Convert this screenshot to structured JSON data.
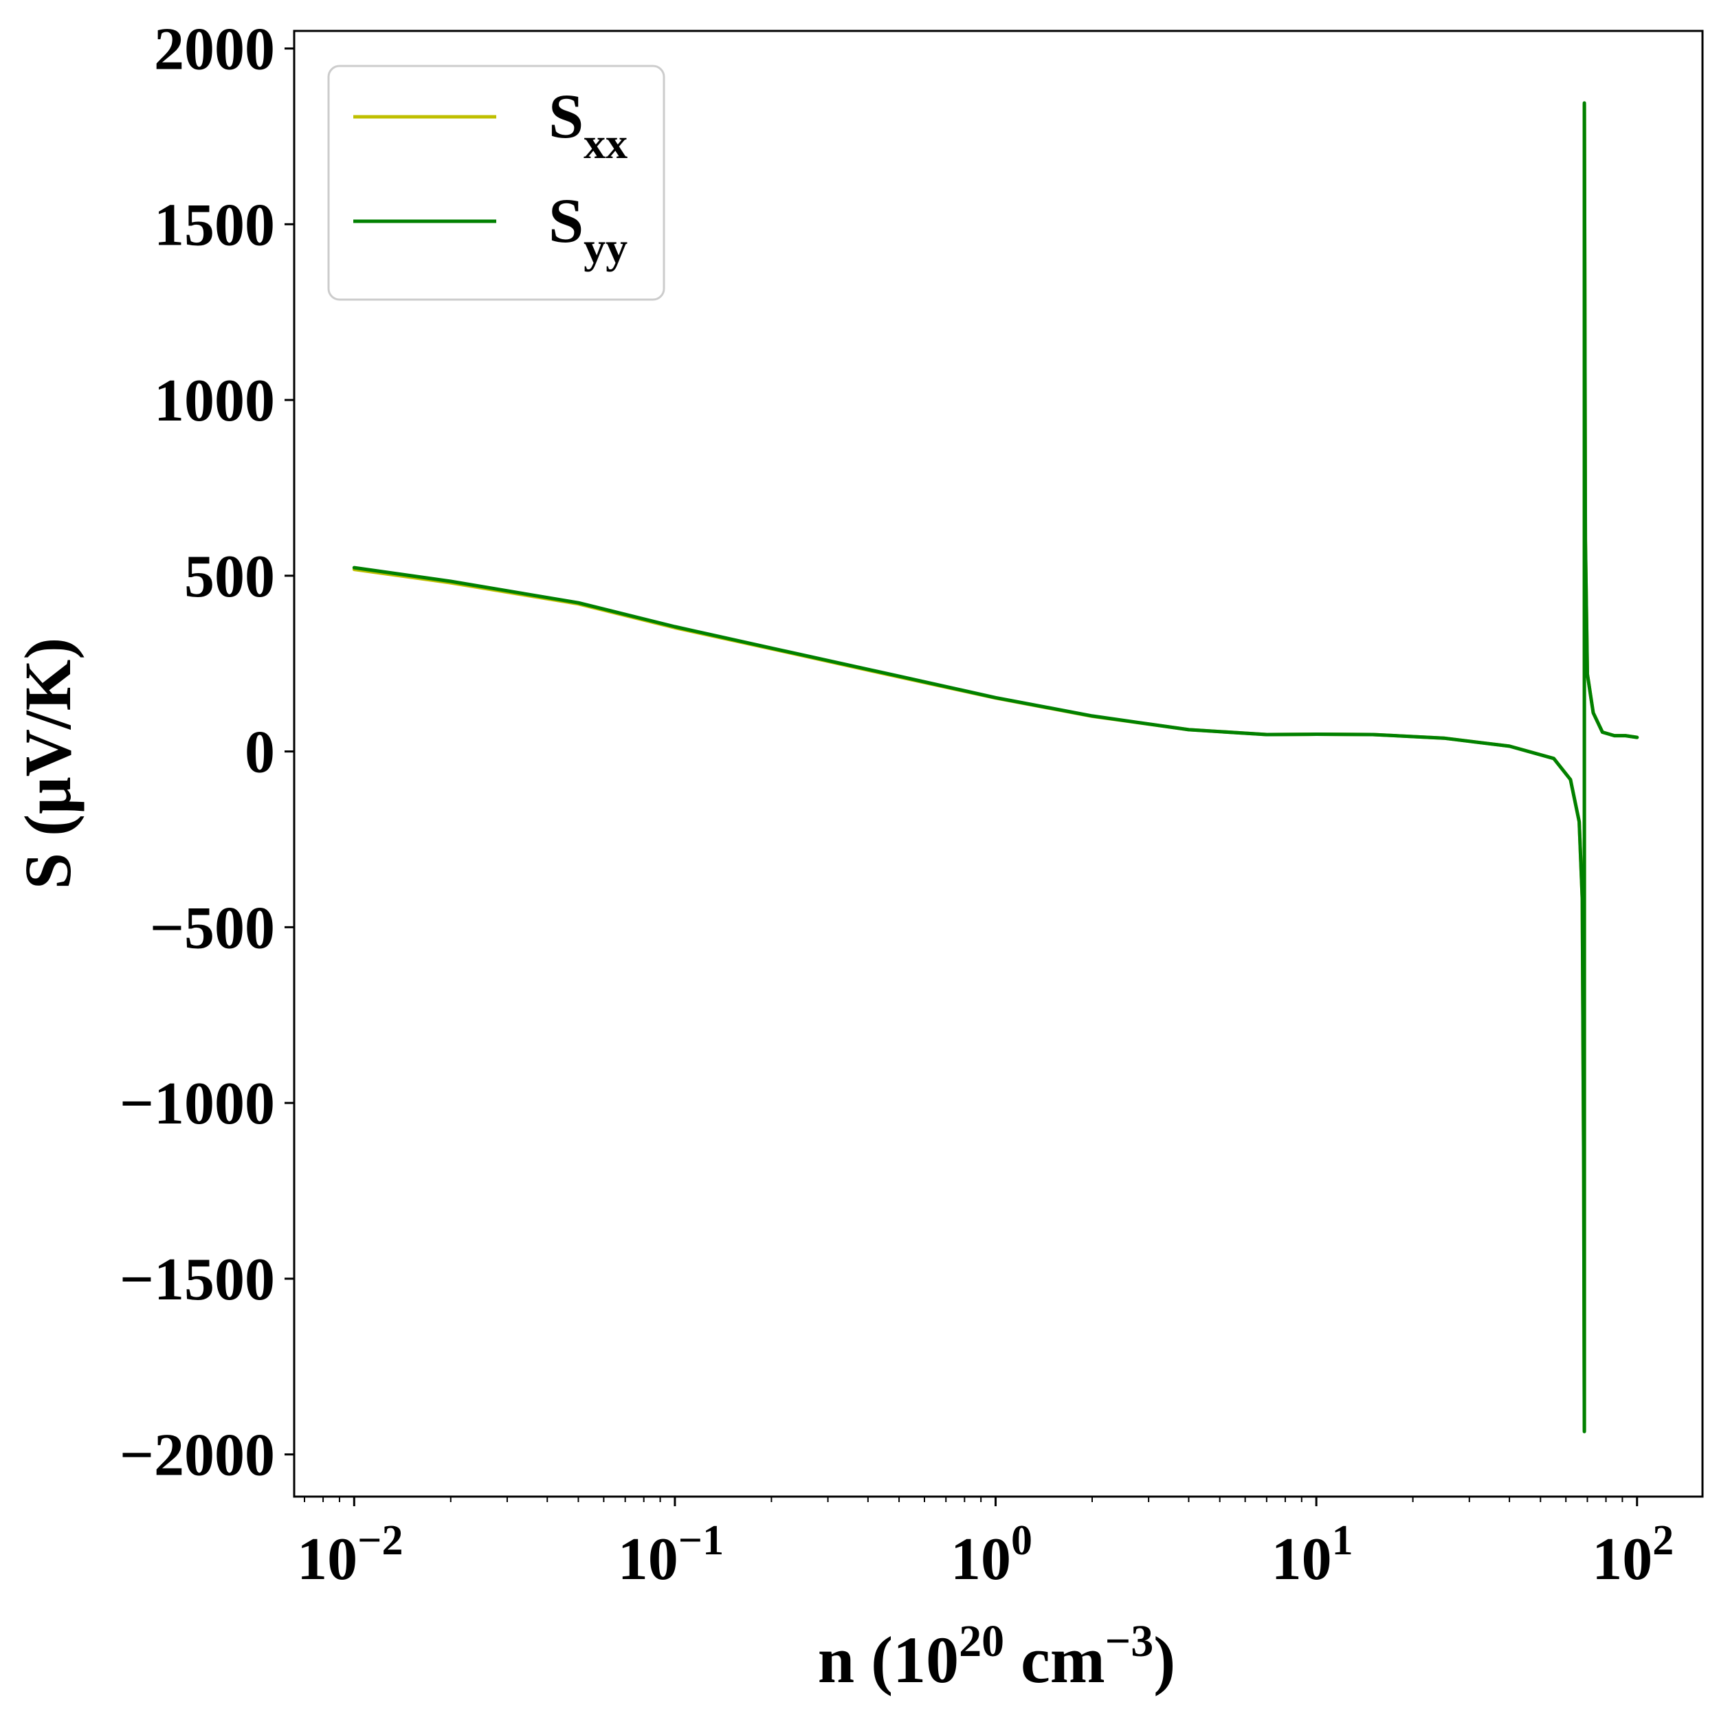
{
  "chart_data": {
    "type": "line",
    "xlabel": {
      "prefix": "n (10",
      "sup1": "20",
      "mid": " cm",
      "sup2": "−3",
      "suffix": ")"
    },
    "ylabel": "S (μV/K)",
    "xscale": "log",
    "xlim": [
      0.0065,
      160
    ],
    "ylim": [
      -2120,
      2050
    ],
    "yticks": [
      {
        "value": 2000,
        "label": "2000"
      },
      {
        "value": 1500,
        "label": "1500"
      },
      {
        "value": 1000,
        "label": "1000"
      },
      {
        "value": 500,
        "label": "500"
      },
      {
        "value": 0,
        "label": "0"
      },
      {
        "value": -500,
        "label": "−500"
      },
      {
        "value": -1000,
        "label": "−1000"
      },
      {
        "value": -1500,
        "label": "−1500"
      },
      {
        "value": -2000,
        "label": "−2000"
      }
    ],
    "xticks": [
      {
        "value": 0.01,
        "base": "10",
        "exp": "−2"
      },
      {
        "value": 0.1,
        "base": "10",
        "exp": "−1"
      },
      {
        "value": 1,
        "base": "10",
        "exp": "0"
      },
      {
        "value": 10,
        "base": "10",
        "exp": "1"
      },
      {
        "value": 100,
        "base": "10",
        "exp": "2"
      }
    ],
    "grid": false,
    "legend_position": "upper-left",
    "series": [
      {
        "name": "S",
        "name_sub": "xx",
        "color": "#bfbf00",
        "points": [
          [
            0.01,
            518
          ],
          [
            0.02,
            480
          ],
          [
            0.05,
            420
          ],
          [
            0.1,
            352
          ],
          [
            0.2,
            292
          ],
          [
            0.5,
            212
          ],
          [
            1,
            152
          ],
          [
            2,
            100
          ],
          [
            4,
            62
          ],
          [
            7,
            48
          ],
          [
            10,
            49
          ],
          [
            15,
            48
          ],
          [
            25,
            38
          ],
          [
            40,
            15
          ],
          [
            55,
            -20
          ],
          [
            62,
            -80
          ],
          [
            66,
            -200
          ],
          [
            67.5,
            -420
          ],
          [
            68.2,
            -1200
          ],
          [
            68.5,
            -1930
          ],
          [
            68.5,
            1840
          ],
          [
            69,
            600
          ],
          [
            70,
            220
          ],
          [
            73,
            110
          ],
          [
            78,
            55
          ],
          [
            85,
            45
          ],
          [
            92,
            45
          ],
          [
            100,
            40
          ]
        ]
      },
      {
        "name": "S",
        "name_sub": "yy",
        "color": "#008000",
        "points": [
          [
            0.01,
            523
          ],
          [
            0.02,
            484
          ],
          [
            0.05,
            423
          ],
          [
            0.1,
            355
          ],
          [
            0.2,
            294
          ],
          [
            0.5,
            214
          ],
          [
            1,
            153
          ],
          [
            2,
            101
          ],
          [
            4,
            62
          ],
          [
            7,
            48
          ],
          [
            10,
            49
          ],
          [
            15,
            48
          ],
          [
            25,
            38
          ],
          [
            40,
            15
          ],
          [
            55,
            -20
          ],
          [
            62,
            -80
          ],
          [
            66,
            -200
          ],
          [
            67.5,
            -420
          ],
          [
            68.2,
            -1200
          ],
          [
            68.5,
            -1935
          ],
          [
            68.5,
            1845
          ],
          [
            69,
            600
          ],
          [
            70,
            220
          ],
          [
            73,
            110
          ],
          [
            78,
            55
          ],
          [
            85,
            45
          ],
          [
            92,
            45
          ],
          [
            100,
            40
          ]
        ]
      }
    ]
  }
}
